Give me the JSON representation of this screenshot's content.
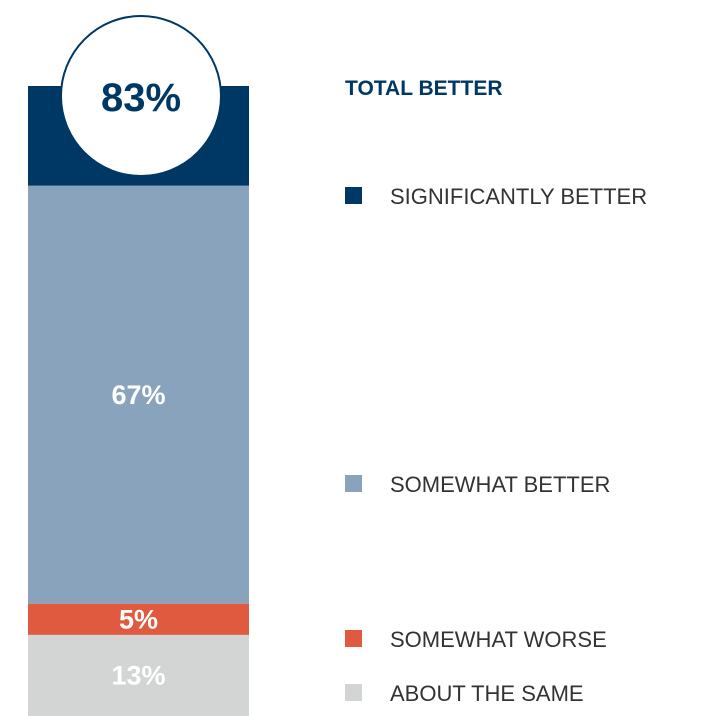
{
  "chart_data": {
    "type": "bar",
    "stacked": true,
    "title": "",
    "total": {
      "label": "TOTAL BETTER",
      "value": 83,
      "display": "83%"
    },
    "segments": [
      {
        "name": "SIGNIFICANTLY BETTER",
        "value": 16,
        "label": "",
        "color": "#003865"
      },
      {
        "name": "SOMEWHAT BETTER",
        "value": 67,
        "label": "67%",
        "color": "#8aa3bd"
      },
      {
        "name": "SOMEWHAT WORSE",
        "value": 5,
        "label": "5%",
        "color": "#e05a3f"
      },
      {
        "name": "ABOUT THE SAME",
        "value": 13,
        "label": "13%",
        "color": "#d3d4d4"
      }
    ]
  }
}
